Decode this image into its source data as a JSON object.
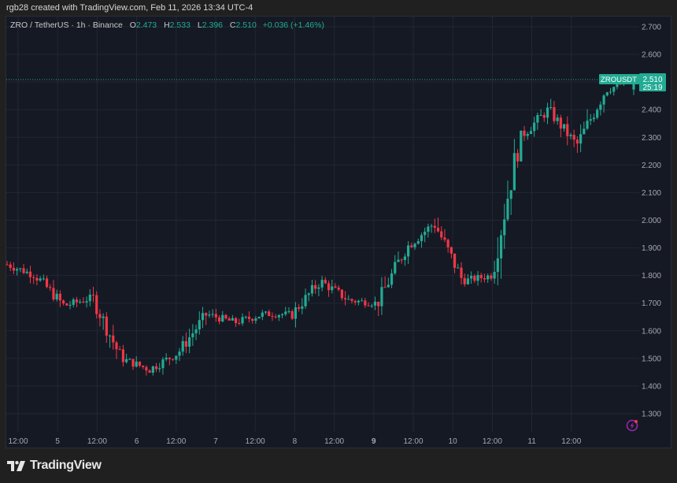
{
  "credit": "rgb28 created with TradingView.com, Feb 11, 2026 13:34 UTC-4",
  "legend": {
    "symbol": "ZRO / TetherUS · 1h · Binance",
    "o_label": "O",
    "o": "2.473",
    "h_label": "H",
    "h": "2.533",
    "l_label": "L",
    "l": "2.396",
    "c_label": "C",
    "c": "2.510",
    "change": "+0.036 (+1.46%)"
  },
  "price_tag": {
    "symbol": "ZROUSDT",
    "price": "2.510",
    "countdown": "25:19"
  },
  "footer": {
    "brand": "TradingView"
  },
  "colors": {
    "up": "#22ab94",
    "down": "#f23645",
    "background": "#151924",
    "grid": "#232734"
  },
  "chart_data": {
    "type": "candlestick",
    "title": "ZRO / TetherUS · 1h · Binance",
    "xlabel": "",
    "ylabel": "",
    "ylim": [
      1.25,
      2.72
    ],
    "y_ticks": [
      "2.700",
      "2.600",
      "2.500",
      "2.400",
      "2.300",
      "2.200",
      "2.100",
      "2.000",
      "1.900",
      "1.800",
      "1.700",
      "1.600",
      "1.500",
      "1.400",
      "1.300"
    ],
    "x_ticks": [
      "12:00",
      "5",
      "12:00",
      "6",
      "12:00",
      "7",
      "12:00",
      "8",
      "12:00",
      "9",
      "12:00",
      "10",
      "12:00",
      "11",
      "12:00"
    ],
    "grid": true,
    "last_price": 2.51,
    "ohlc_last": {
      "open": 2.473,
      "high": 2.533,
      "low": 2.396,
      "close": 2.51
    },
    "approx_path": [
      {
        "x": "Feb 4 07:00",
        "price": 1.84
      },
      {
        "x": "Feb 4 12:00",
        "price": 1.8
      },
      {
        "x": "Feb 5 00:00",
        "price": 1.69
      },
      {
        "x": "Feb 5 12:00",
        "price": 1.72
      },
      {
        "x": "Feb 5 18:00",
        "price": 1.5
      },
      {
        "x": "Feb 6 00:00",
        "price": 1.46
      },
      {
        "x": "Feb 6 12:00",
        "price": 1.52
      },
      {
        "x": "Feb 6 18:00",
        "price": 1.66
      },
      {
        "x": "Feb 7 00:00",
        "price": 1.63
      },
      {
        "x": "Feb 7 12:00",
        "price": 1.66
      },
      {
        "x": "Feb 8 00:00",
        "price": 1.66
      },
      {
        "x": "Feb 8 12:00",
        "price": 1.78
      },
      {
        "x": "Feb 9 00:00",
        "price": 1.71
      },
      {
        "x": "Feb 9 12:00",
        "price": 1.7
      },
      {
        "x": "Feb 10 00:00",
        "price": 1.9
      },
      {
        "x": "Feb 10 06:00",
        "price": 1.99
      },
      {
        "x": "Feb 10 08:00",
        "price": 1.78
      },
      {
        "x": "Feb 10 18:00",
        "price": 1.8
      },
      {
        "x": "Feb 10 22:00",
        "price": 2.3
      },
      {
        "x": "Feb 11 04:00",
        "price": 2.4
      },
      {
        "x": "Feb 11 08:00",
        "price": 2.27
      },
      {
        "x": "Feb 11 11:00",
        "price": 2.47
      },
      {
        "x": "Feb 11 13:00",
        "price": 2.51
      }
    ]
  }
}
